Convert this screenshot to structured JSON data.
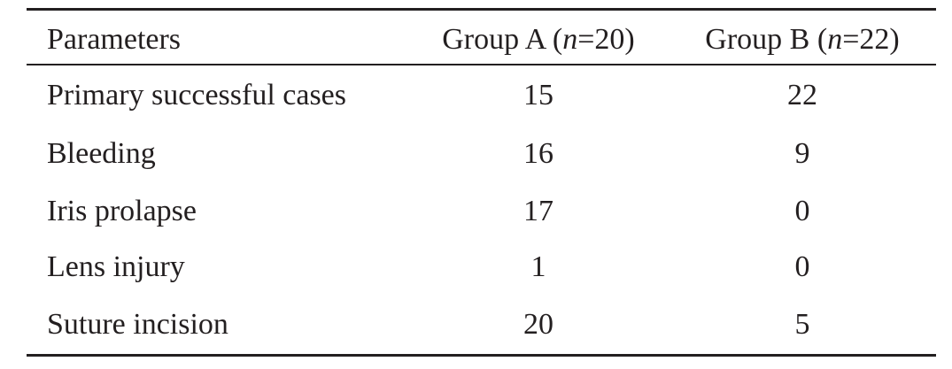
{
  "table": {
    "header": [
      {
        "text": "Parameters"
      },
      {
        "prefix": "Group A (",
        "italic": "n",
        "suffix": "=20)"
      },
      {
        "prefix": "Group B (",
        "italic": "n",
        "suffix": "=22)"
      }
    ],
    "rows": [
      [
        "Primary successful cases",
        15,
        22
      ],
      [
        "Bleeding",
        16,
        9
      ],
      [
        "Iris prolapse",
        17,
        0
      ],
      [
        "Lens injury",
        1,
        0
      ],
      [
        "Suture incision",
        20,
        5
      ]
    ]
  }
}
